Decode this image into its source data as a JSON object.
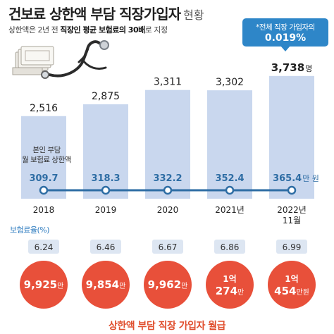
{
  "title": {
    "main": "건보료 상한액 부담 직장가입자",
    "suffix": "현황"
  },
  "subtitle": {
    "pre": "상한액은 2년 전 ",
    "bold": "직장인 평균 보험료의 30배",
    "post": "로 지정"
  },
  "callout": {
    "line1": "*전체 직장 가입자의",
    "line2": "0.019%"
  },
  "premium_label": "본인 부담\n월 보험료 상한액",
  "rate_title": "보험료율(%)",
  "footer": "상한액 부담 직장 가입자 월급",
  "colors": {
    "bar": "#c9d7ee",
    "line": "#2e6da4",
    "rate_box": "#dde6f2",
    "salary_circle": "#e8503a",
    "callout": "#2e86c8"
  },
  "icons": [
    "cash-stack-icon",
    "stethoscope-icon"
  ],
  "chart_data": [
    {
      "type": "bar",
      "categories": [
        "2018",
        "2019",
        "2020",
        "2021년",
        "2022년\n11월"
      ],
      "series": [
        {
          "values": [
            2516,
            2875,
            3311,
            3302,
            3738
          ]
        }
      ],
      "value_labels": [
        "2,516",
        "2,875",
        "3,311",
        "3,302",
        "3,738"
      ],
      "last_unit": "명"
    },
    {
      "type": "line",
      "categories": [
        "2018",
        "2019",
        "2020",
        "2021년",
        "2022년\n11월"
      ],
      "series": [
        {
          "values": [
            309.7,
            318.3,
            332.2,
            352.4,
            365.4
          ]
        }
      ],
      "value_labels": [
        "309.7",
        "318.3",
        "332.2",
        "352.4",
        "365.4"
      ],
      "last_unit": "만 원"
    },
    {
      "type": "table",
      "categories": [
        "2018",
        "2019",
        "2020",
        "2021년",
        "2022년\n11월"
      ],
      "series": [
        {
          "values": [
            6.24,
            6.46,
            6.67,
            6.86,
            6.99
          ]
        }
      ],
      "value_labels": [
        "6.24",
        "6.46",
        "6.67",
        "6.86",
        "6.99"
      ]
    },
    {
      "type": "table",
      "categories": [
        "2018",
        "2019",
        "2020",
        "2021년",
        "2022년\n11월"
      ],
      "series": [
        {
          "values": [
            9925,
            9854,
            9962,
            10274,
            10454
          ]
        }
      ],
      "value_labels": [
        {
          "big": "9,925",
          "small": "만"
        },
        {
          "big": "9,854",
          "small": "만"
        },
        {
          "big": "9,962",
          "small": "만"
        },
        {
          "top": "1억",
          "big": "274",
          "small": "만"
        },
        {
          "top": "1억",
          "big": "454",
          "small": "만원"
        }
      ]
    }
  ]
}
